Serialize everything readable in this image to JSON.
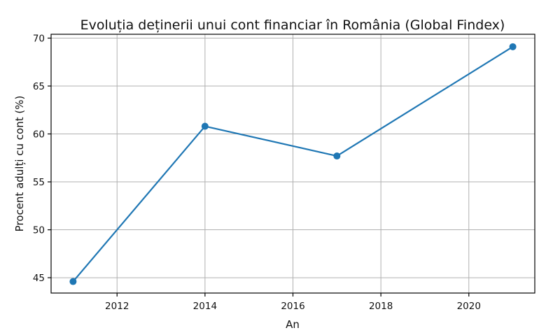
{
  "chart_data": {
    "type": "line",
    "title": "Evoluția deținerii unui cont financiar în România (Global Findex)",
    "xlabel": "An",
    "ylabel": "Procent adulți cu cont (%)",
    "x": [
      2011,
      2014,
      2017,
      2021
    ],
    "series": [
      {
        "values": [
          44.6,
          60.8,
          57.7,
          69.1
        ],
        "color": "#1f77b4"
      }
    ],
    "xlim": [
      2010.5,
      2021.5
    ],
    "ylim": [
      43.4,
      70.4
    ],
    "xticks": [
      2012,
      2014,
      2016,
      2018,
      2020
    ],
    "yticks": [
      45,
      50,
      55,
      60,
      65,
      70
    ],
    "grid": true,
    "legend": "none"
  }
}
